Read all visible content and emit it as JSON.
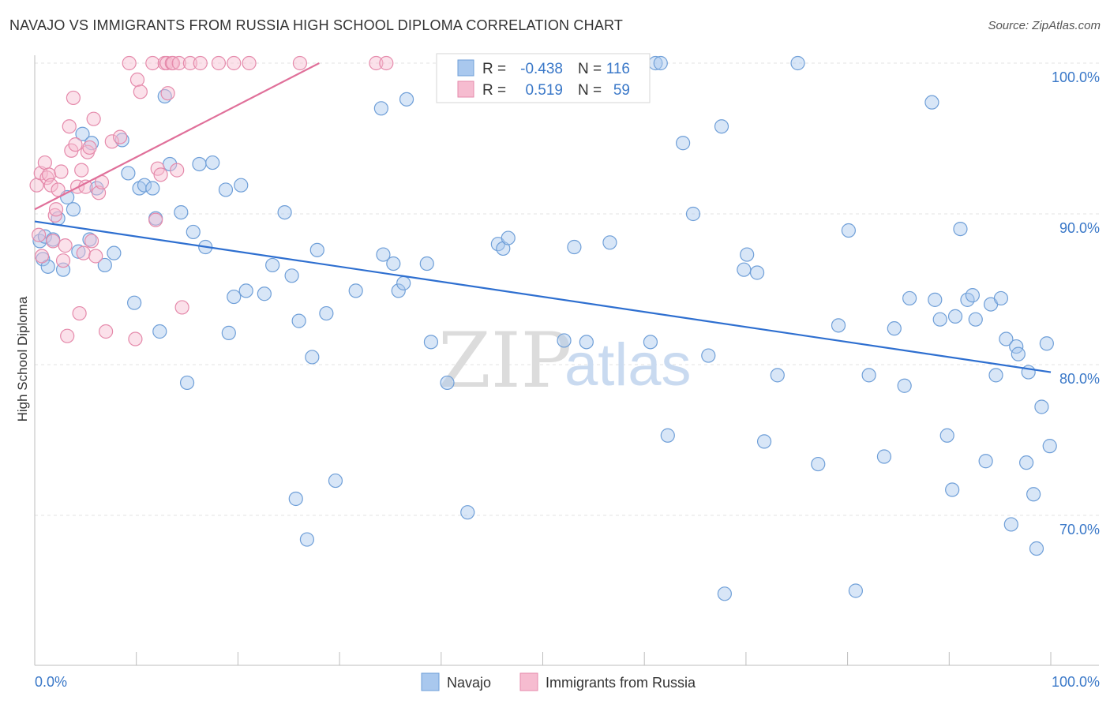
{
  "chart_data": {
    "type": "scatter",
    "title": "NAVAJO VS IMMIGRANTS FROM RUSSIA HIGH SCHOOL DIPLOMA CORRELATION CHART",
    "source": "Source: ZipAtlas.com",
    "ylabel": "High School Diploma",
    "xlabel": "",
    "x_tick_labels": [
      "0.0%",
      "100.0%"
    ],
    "y_tick_labels": [
      "100.0%",
      "90.0%",
      "80.0%",
      "70.0%"
    ],
    "y_ticks": [
      100,
      90,
      80,
      70
    ],
    "xlim": [
      0,
      100
    ],
    "ylim": [
      60,
      102
    ],
    "watermark": {
      "zip": "ZIP",
      "atlas": "atlas"
    },
    "legend_box": {
      "rows": [
        {
          "r_label": "R =",
          "r_value": "-0.438",
          "n_label": "N =",
          "n_value": "116"
        },
        {
          "r_label": "R =",
          "r_value": "0.519",
          "n_label": "N =",
          "n_value": "59"
        }
      ]
    },
    "series": [
      {
        "name": "Navajo",
        "color": "#a9c8ee",
        "stroke": "#6f9fd8",
        "trend_color": "#2e6fd0",
        "trend": {
          "x": [
            0,
            100
          ],
          "y": [
            89.5,
            79.5
          ]
        },
        "points": [
          [
            0.5,
            88.2
          ],
          [
            0.8,
            87.0
          ],
          [
            1.0,
            88.5
          ],
          [
            1.3,
            86.5
          ],
          [
            1.8,
            88.3
          ],
          [
            2.3,
            89.7
          ],
          [
            2.8,
            86.3
          ],
          [
            3.2,
            91.1
          ],
          [
            3.8,
            90.3
          ],
          [
            4.3,
            87.5
          ],
          [
            4.7,
            95.3
          ],
          [
            5.4,
            88.3
          ],
          [
            5.6,
            94.7
          ],
          [
            6.1,
            91.7
          ],
          [
            6.9,
            86.6
          ],
          [
            7.8,
            87.4
          ],
          [
            8.6,
            94.9
          ],
          [
            9.2,
            92.7
          ],
          [
            9.8,
            84.1
          ],
          [
            10.3,
            91.7
          ],
          [
            10.8,
            91.9
          ],
          [
            11.6,
            91.7
          ],
          [
            11.9,
            89.7
          ],
          [
            12.3,
            82.2
          ],
          [
            12.8,
            97.8
          ],
          [
            13.3,
            93.3
          ],
          [
            14.4,
            90.1
          ],
          [
            15.0,
            78.8
          ],
          [
            15.6,
            88.8
          ],
          [
            16.2,
            93.3
          ],
          [
            16.8,
            87.8
          ],
          [
            17.5,
            93.4
          ],
          [
            18.8,
            91.6
          ],
          [
            19.1,
            82.1
          ],
          [
            19.6,
            84.5
          ],
          [
            20.3,
            91.9
          ],
          [
            20.8,
            84.9
          ],
          [
            22.6,
            84.7
          ],
          [
            23.4,
            86.6
          ],
          [
            24.6,
            90.1
          ],
          [
            25.3,
            85.9
          ],
          [
            25.7,
            71.1
          ],
          [
            26.0,
            82.9
          ],
          [
            26.8,
            68.4
          ],
          [
            27.3,
            80.5
          ],
          [
            27.8,
            87.6
          ],
          [
            28.7,
            83.4
          ],
          [
            29.6,
            72.3
          ],
          [
            31.6,
            84.9
          ],
          [
            34.1,
            97.0
          ],
          [
            34.3,
            87.3
          ],
          [
            35.3,
            86.7
          ],
          [
            35.8,
            84.9
          ],
          [
            36.3,
            85.4
          ],
          [
            36.6,
            97.6
          ],
          [
            38.6,
            86.7
          ],
          [
            39.0,
            81.5
          ],
          [
            40.6,
            78.8
          ],
          [
            42.6,
            70.2
          ],
          [
            45.6,
            88.0
          ],
          [
            46.1,
            87.7
          ],
          [
            46.6,
            88.4
          ],
          [
            52.1,
            81.6
          ],
          [
            53.1,
            100.0
          ],
          [
            53.1,
            87.8
          ],
          [
            54.3,
            81.5
          ],
          [
            56.6,
            88.1
          ],
          [
            60.6,
            81.5
          ],
          [
            61.1,
            100.0
          ],
          [
            61.6,
            100.0
          ],
          [
            62.3,
            75.3
          ],
          [
            63.8,
            94.7
          ],
          [
            64.8,
            90.0
          ],
          [
            66.3,
            80.6
          ],
          [
            67.6,
            95.8
          ],
          [
            67.9,
            64.8
          ],
          [
            69.8,
            86.3
          ],
          [
            70.1,
            87.3
          ],
          [
            71.1,
            86.1
          ],
          [
            71.8,
            74.9
          ],
          [
            73.1,
            79.3
          ],
          [
            75.1,
            100.0
          ],
          [
            77.1,
            73.4
          ],
          [
            79.1,
            82.6
          ],
          [
            80.1,
            88.9
          ],
          [
            80.8,
            65.0
          ],
          [
            82.1,
            79.3
          ],
          [
            83.6,
            73.9
          ],
          [
            84.6,
            82.4
          ],
          [
            85.6,
            78.6
          ],
          [
            86.1,
            84.4
          ],
          [
            88.3,
            97.4
          ],
          [
            88.6,
            84.3
          ],
          [
            89.1,
            83.0
          ],
          [
            89.8,
            75.3
          ],
          [
            90.3,
            71.7
          ],
          [
            90.6,
            83.2
          ],
          [
            91.1,
            89.0
          ],
          [
            91.8,
            84.3
          ],
          [
            92.3,
            84.6
          ],
          [
            92.6,
            83.0
          ],
          [
            93.6,
            73.6
          ],
          [
            94.1,
            84.0
          ],
          [
            94.6,
            79.3
          ],
          [
            95.1,
            84.4
          ],
          [
            95.6,
            81.7
          ],
          [
            96.1,
            69.4
          ],
          [
            96.6,
            81.2
          ],
          [
            96.8,
            80.7
          ],
          [
            97.6,
            73.5
          ],
          [
            97.8,
            79.5
          ],
          [
            98.3,
            71.4
          ],
          [
            98.6,
            67.8
          ],
          [
            99.1,
            77.2
          ],
          [
            99.6,
            81.4
          ],
          [
            99.9,
            74.6
          ]
        ]
      },
      {
        "name": "Immigrants from Russia",
        "color": "#f6bcd0",
        "stroke": "#e58aab",
        "trend_color": "#e0709a",
        "trend": {
          "x": [
            0,
            28
          ],
          "y": [
            90.3,
            100.0
          ]
        },
        "points": [
          [
            0.2,
            91.9
          ],
          [
            0.4,
            88.6
          ],
          [
            0.6,
            92.7
          ],
          [
            0.7,
            87.2
          ],
          [
            1.0,
            93.4
          ],
          [
            1.2,
            92.4
          ],
          [
            1.4,
            92.6
          ],
          [
            1.6,
            91.9
          ],
          [
            1.8,
            88.2
          ],
          [
            2.0,
            89.9
          ],
          [
            2.1,
            90.3
          ],
          [
            2.3,
            91.6
          ],
          [
            2.6,
            92.8
          ],
          [
            2.8,
            86.9
          ],
          [
            3.0,
            87.9
          ],
          [
            3.2,
            81.9
          ],
          [
            3.4,
            95.8
          ],
          [
            3.6,
            94.2
          ],
          [
            3.8,
            97.7
          ],
          [
            4.0,
            94.6
          ],
          [
            4.2,
            91.8
          ],
          [
            4.4,
            83.4
          ],
          [
            4.6,
            92.9
          ],
          [
            4.8,
            87.4
          ],
          [
            5.0,
            91.8
          ],
          [
            5.2,
            94.1
          ],
          [
            5.4,
            94.4
          ],
          [
            5.6,
            88.2
          ],
          [
            5.8,
            96.3
          ],
          [
            6.0,
            87.2
          ],
          [
            6.3,
            91.4
          ],
          [
            6.6,
            92.1
          ],
          [
            7.0,
            82.2
          ],
          [
            7.6,
            94.8
          ],
          [
            8.4,
            95.1
          ],
          [
            9.3,
            100.0
          ],
          [
            9.9,
            81.7
          ],
          [
            10.1,
            98.9
          ],
          [
            10.4,
            98.1
          ],
          [
            11.6,
            100.0
          ],
          [
            11.9,
            89.6
          ],
          [
            12.1,
            93.0
          ],
          [
            12.4,
            92.6
          ],
          [
            12.8,
            100.0
          ],
          [
            13.0,
            100.0
          ],
          [
            13.1,
            98.0
          ],
          [
            13.5,
            100.0
          ],
          [
            13.6,
            100.0
          ],
          [
            14.0,
            92.9
          ],
          [
            14.5,
            83.8
          ],
          [
            14.2,
            100.0
          ],
          [
            15.3,
            100.0
          ],
          [
            16.3,
            100.0
          ],
          [
            18.1,
            100.0
          ],
          [
            19.6,
            100.0
          ],
          [
            21.1,
            100.0
          ],
          [
            26.1,
            100.0
          ],
          [
            33.6,
            100.0
          ],
          [
            34.6,
            100.0
          ]
        ]
      }
    ]
  }
}
